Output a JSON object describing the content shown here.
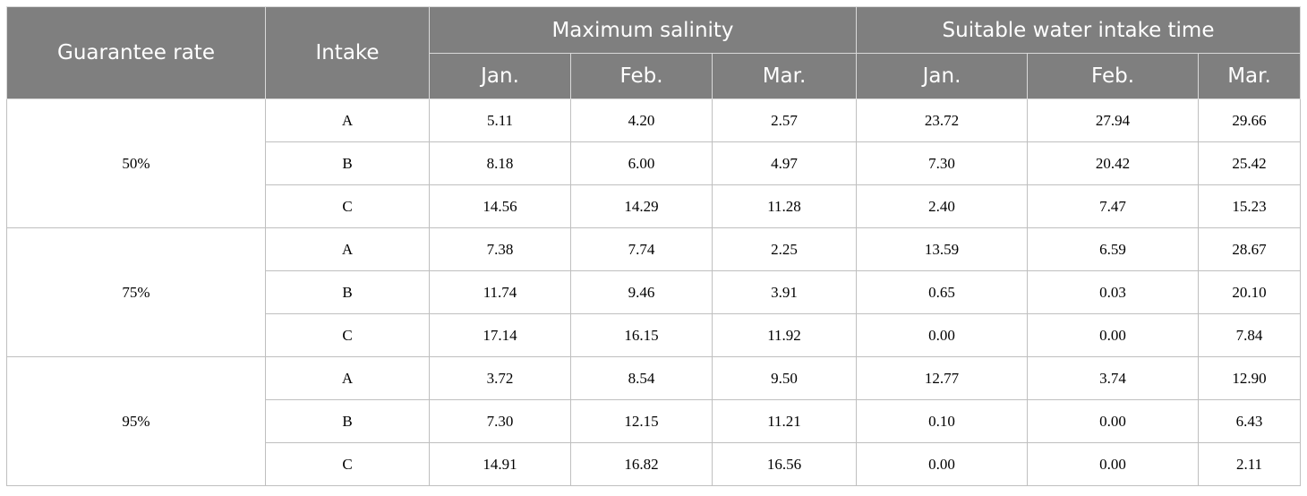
{
  "table": {
    "headers": {
      "guarantee_rate": "Guarantee rate",
      "intake": "Intake",
      "maximum_salinity": "Maximum salinity",
      "suitable_time": "Suitable water intake time",
      "months": [
        "Jan.",
        "Feb.",
        "Mar.",
        "Jan.",
        "Feb.",
        "Mar."
      ]
    },
    "groups": [
      {
        "rate": "50%",
        "rows": [
          {
            "intake": "A",
            "values": [
              "5.11",
              "4.20",
              "2.57",
              "23.72",
              "27.94",
              "29.66"
            ]
          },
          {
            "intake": "B",
            "values": [
              "8.18",
              "6.00",
              "4.97",
              "7.30",
              "20.42",
              "25.42"
            ]
          },
          {
            "intake": "C",
            "values": [
              "14.56",
              "14.29",
              "11.28",
              "2.40",
              "7.47",
              "15.23"
            ]
          }
        ]
      },
      {
        "rate": "75%",
        "rows": [
          {
            "intake": "A",
            "values": [
              "7.38",
              "7.74",
              "2.25",
              "13.59",
              "6.59",
              "28.67"
            ]
          },
          {
            "intake": "B",
            "values": [
              "11.74",
              "9.46",
              "3.91",
              "0.65",
              "0.03",
              "20.10"
            ]
          },
          {
            "intake": "C",
            "values": [
              "17.14",
              "16.15",
              "11.92",
              "0.00",
              "0.00",
              "7.84"
            ]
          }
        ]
      },
      {
        "rate": "95%",
        "rows": [
          {
            "intake": "A",
            "values": [
              "3.72",
              "8.54",
              "9.50",
              "12.77",
              "3.74",
              "12.90"
            ]
          },
          {
            "intake": "B",
            "values": [
              "7.30",
              "12.15",
              "11.21",
              "0.10",
              "0.00",
              "6.43"
            ]
          },
          {
            "intake": "C",
            "values": [
              "14.91",
              "16.82",
              "16.56",
              "0.00",
              "0.00",
              "2.11"
            ]
          }
        ]
      }
    ]
  }
}
